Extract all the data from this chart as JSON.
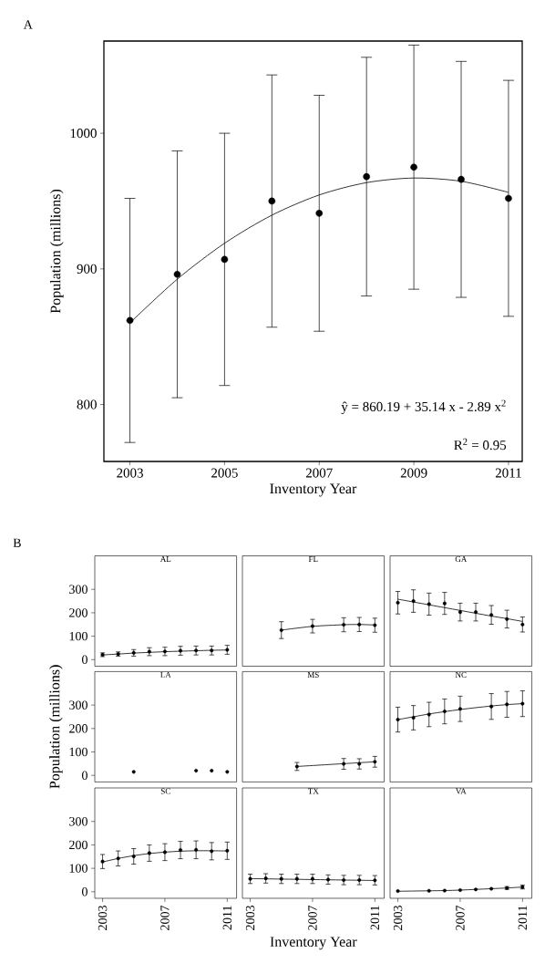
{
  "chart_data": [
    {
      "type": "scatter",
      "title": "A",
      "xlabel": "Inventory Year",
      "ylabel": "Population (millions)",
      "xlim": [
        2002.45,
        2011.29
      ],
      "ylim": [
        758,
        1068
      ],
      "xticks": [
        2003,
        2005,
        2007,
        2009,
        2011
      ],
      "yticks": [
        800,
        900,
        1000
      ],
      "line_style": "solid",
      "annotations": [
        "ŷ = 860.19 + 35.14 x - 2.89 x$^{2}$",
        "R$^{2}$ = 0.95"
      ],
      "x": [
        2003,
        2004,
        2005,
        2006,
        2007,
        2008,
        2009,
        2010,
        2011
      ],
      "series": [
        {
          "type": "scatter",
          "marker": "circle",
          "color": "#000000",
          "values": [
            862,
            896,
            907,
            950,
            941,
            968,
            975,
            966,
            952
          ],
          "errors": [
            90,
            91,
            93,
            93,
            87,
            88,
            90,
            87,
            87
          ]
        },
        {
          "type": "line",
          "marker": "none",
          "color": "#000000",
          "values": [
            860.2,
            892.4,
            918.9,
            939.6,
            954.5,
            963.6,
            967.0,
            964.6,
            956.4
          ]
        }
      ]
    },
    {
      "type": "scatter",
      "title": "AL",
      "annotations": [
        "B"
      ],
      "xlim": [
        2002.5,
        2011.6
      ],
      "ylim": [
        -28,
        443
      ],
      "xticks": [
        2003,
        2007,
        2011
      ],
      "yticks": [
        0,
        100,
        200,
        300
      ],
      "tick_labels": "y",
      "line_style": "solid",
      "x": [
        2003,
        2004,
        2005,
        2006,
        2007,
        2008,
        2009,
        2010,
        2011
      ],
      "series": [
        {
          "type": "scatter",
          "marker": "circle",
          "color": "#000000",
          "values": [
            21,
            24,
            29,
            34,
            35,
            38,
            39,
            39,
            42
          ],
          "errors": [
            8,
            9,
            14,
            17,
            18,
            19,
            19,
            19,
            19
          ]
        },
        {
          "type": "line",
          "marker": "none",
          "color": "#000000",
          "values": [
            20,
            24,
            28,
            31,
            34,
            36,
            38,
            40,
            41
          ]
        }
      ]
    },
    {
      "type": "scatter",
      "title": "FL",
      "xlim": [
        2002.5,
        2011.6
      ],
      "ylim": [
        -28,
        443
      ],
      "xticks": [
        2003,
        2007,
        2011
      ],
      "yticks": [
        0,
        100,
        200,
        300
      ],
      "tick_labels": false,
      "line_style": "solid",
      "x": [
        2005,
        2007,
        2009,
        2010,
        2011
      ],
      "series": [
        {
          "type": "scatter",
          "marker": "circle",
          "color": "#000000",
          "values": [
            126,
            143,
            149,
            150,
            147
          ],
          "errors": [
            36,
            29,
            30,
            30,
            30
          ]
        },
        {
          "type": "line",
          "marker": "none",
          "color": "#000000",
          "values": [
            126,
            142,
            149,
            150,
            148
          ]
        }
      ]
    },
    {
      "type": "scatter",
      "title": "GA",
      "xlim": [
        2002.5,
        2011.6
      ],
      "ylim": [
        -28,
        443
      ],
      "xticks": [
        2003,
        2007,
        2011
      ],
      "yticks": [
        0,
        100,
        200,
        300
      ],
      "tick_labels": false,
      "line_style": "solid",
      "x": [
        2003,
        2004,
        2005,
        2006,
        2007,
        2008,
        2009,
        2010,
        2011
      ],
      "series": [
        {
          "type": "scatter",
          "marker": "circle",
          "color": "#000000",
          "values": [
            243,
            250,
            237,
            240,
            203,
            203,
            191,
            173,
            150
          ],
          "errors": [
            48,
            48,
            47,
            47,
            38,
            38,
            40,
            38,
            32
          ]
        },
        {
          "type": "line",
          "marker": "none",
          "color": "#000000",
          "values": [
            258,
            246,
            234,
            222,
            210,
            198,
            186,
            175,
            163
          ]
        }
      ]
    },
    {
      "type": "scatter",
      "title": "LA",
      "ylabel": "Population (millions)",
      "xlim": [
        2002.5,
        2011.6
      ],
      "ylim": [
        -28,
        443
      ],
      "xticks": [
        2003,
        2007,
        2011
      ],
      "yticks": [
        0,
        100,
        200,
        300
      ],
      "tick_labels": "y",
      "x": [
        2005,
        2009,
        2010,
        2011
      ],
      "series": [
        {
          "type": "scatter",
          "marker": "circle",
          "color": "#000000",
          "values": [
            15,
            20,
            20,
            15
          ]
        }
      ]
    },
    {
      "type": "scatter",
      "title": "MS",
      "xlim": [
        2002.5,
        2011.6
      ],
      "ylim": [
        -28,
        443
      ],
      "xticks": [
        2003,
        2007,
        2011
      ],
      "yticks": [
        0,
        100,
        200,
        300
      ],
      "tick_labels": false,
      "line_style": "solid",
      "x": [
        2006,
        2009,
        2010,
        2011
      ],
      "series": [
        {
          "type": "scatter",
          "marker": "circle",
          "color": "#000000",
          "values": [
            38,
            49,
            49,
            58
          ],
          "errors": [
            17,
            23,
            22,
            23
          ]
        },
        {
          "type": "line",
          "marker": "none",
          "color": "#000000",
          "values": [
            38,
            50,
            54,
            58
          ]
        }
      ]
    },
    {
      "type": "scatter",
      "title": "NC",
      "xlim": [
        2002.5,
        2011.6
      ],
      "ylim": [
        -28,
        443
      ],
      "xticks": [
        2003,
        2007,
        2011
      ],
      "yticks": [
        0,
        100,
        200,
        300
      ],
      "tick_labels": false,
      "line_style": "solid",
      "series": [
        {
          "type": "scatter",
          "marker": "circle",
          "color": "#000000",
          "x": [
            2003,
            2004,
            2005,
            2006,
            2007,
            2009,
            2010,
            2011
          ],
          "values": [
            238,
            246,
            260,
            273,
            284,
            294,
            303,
            306
          ],
          "errors": [
            53,
            52,
            52,
            53,
            54,
            55,
            55,
            55
          ]
        },
        {
          "type": "line",
          "marker": "none",
          "color": "#000000",
          "x": [
            2003,
            2004,
            2005,
            2006,
            2007,
            2008,
            2009,
            2010,
            2011
          ],
          "values": [
            238,
            250,
            262,
            272,
            281,
            289,
            296,
            302,
            306
          ]
        }
      ]
    },
    {
      "type": "scatter",
      "title": "SC",
      "xlim": [
        2002.5,
        2011.6
      ],
      "ylim": [
        -28,
        443
      ],
      "xticks": [
        2003,
        2007,
        2011
      ],
      "yticks": [
        0,
        100,
        200,
        300
      ],
      "line_style": "solid",
      "x": [
        2003,
        2004,
        2005,
        2006,
        2007,
        2008,
        2009,
        2010,
        2011
      ],
      "series": [
        {
          "type": "scatter",
          "marker": "circle",
          "color": "#000000",
          "values": [
            129,
            142,
            151,
            165,
            169,
            178,
            179,
            173,
            175
          ],
          "errors": [
            30,
            32,
            33,
            35,
            36,
            37,
            38,
            37,
            37
          ]
        },
        {
          "type": "line",
          "marker": "none",
          "color": "#000000",
          "values": [
            127,
            142,
            154,
            163,
            169,
            173,
            175,
            175,
            174
          ]
        }
      ]
    },
    {
      "type": "scatter",
      "title": "TX",
      "xlabel": "Inventory Year",
      "xlim": [
        2002.5,
        2011.6
      ],
      "ylim": [
        -28,
        443
      ],
      "xticks": [
        2003,
        2007,
        2011
      ],
      "yticks": [
        0,
        100,
        200,
        300
      ],
      "tick_labels": "x",
      "line_style": "solid",
      "x": [
        2003,
        2004,
        2005,
        2006,
        2007,
        2008,
        2009,
        2010,
        2011
      ],
      "series": [
        {
          "type": "scatter",
          "marker": "circle",
          "color": "#000000",
          "values": [
            55,
            57,
            55,
            55,
            55,
            52,
            50,
            50,
            49
          ],
          "errors": [
            20,
            20,
            20,
            20,
            20,
            20,
            20,
            20,
            20
          ]
        },
        {
          "type": "line",
          "marker": "none",
          "color": "#000000",
          "values": [
            56,
            55,
            54,
            53,
            52,
            51,
            50,
            49,
            48
          ]
        }
      ]
    },
    {
      "type": "scatter",
      "title": "VA",
      "xlim": [
        2002.5,
        2011.6
      ],
      "ylim": [
        -28,
        443
      ],
      "xticks": [
        2003,
        2007,
        2011
      ],
      "yticks": [
        0,
        100,
        200,
        300
      ],
      "tick_labels": "x",
      "line_style": "solid",
      "series": [
        {
          "type": "scatter",
          "marker": "circle",
          "color": "#000000",
          "x": [
            2003,
            2005,
            2006,
            2007,
            2008,
            2009,
            2010,
            2011
          ],
          "values": [
            3,
            4,
            5,
            7,
            10,
            13,
            16,
            20
          ],
          "errors": [
            null,
            null,
            null,
            null,
            null,
            null,
            6,
            8
          ]
        },
        {
          "type": "line",
          "marker": "none",
          "color": "#000000",
          "x": [
            2003,
            2004,
            2005,
            2006,
            2007,
            2008,
            2009,
            2010,
            2011
          ],
          "values": [
            2,
            3,
            4,
            5,
            7,
            10,
            13,
            16,
            20
          ]
        }
      ]
    }
  ]
}
